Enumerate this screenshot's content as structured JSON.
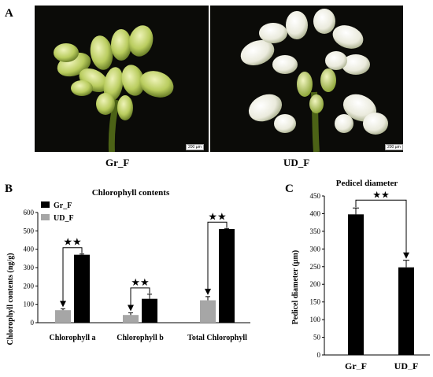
{
  "panelA": {
    "letter": "A",
    "photos": [
      {
        "label": "Gr_F",
        "scale": "200 µm",
        "flower": "green"
      },
      {
        "label": "UD_F",
        "scale": "200 µm",
        "flower": "white"
      }
    ]
  },
  "panelB": {
    "letter": "B"
  },
  "panelC": {
    "letter": "C"
  },
  "colors": {
    "Gr_F": "#000000",
    "UD_F": "#a6a6a6",
    "photo_bg": "#0b0b08"
  },
  "chart_data": [
    {
      "type": "bar",
      "title": "Chlorophyll contents",
      "ylabel": "Chlorophyll contents (ng/g)",
      "xlabel": "",
      "ylim": [
        0,
        600
      ],
      "yticks": [
        0,
        100,
        200,
        300,
        400,
        500,
        600
      ],
      "categories": [
        "Chlorophyll a",
        "Chlorophyll b",
        "Total Chlorophyll"
      ],
      "legend_position": "top-left",
      "series": [
        {
          "name": "UD_F",
          "values": [
            68,
            42,
            122
          ],
          "errors": [
            8,
            12,
            20
          ]
        },
        {
          "name": "Gr_F",
          "values": [
            370,
            130,
            510
          ],
          "errors": [
            4,
            25,
            3
          ]
        }
      ],
      "annotations": [
        "★★",
        "★★",
        "★★"
      ]
    },
    {
      "type": "bar",
      "title": "Pedicel diameter",
      "ylabel": "Pedicel diameter (µm)",
      "xlabel": "",
      "ylim": [
        0,
        450
      ],
      "yticks": [
        0,
        50,
        100,
        150,
        200,
        250,
        300,
        350,
        400,
        450
      ],
      "categories": [
        "Gr_F",
        "UD_F"
      ],
      "values": [
        398,
        248
      ],
      "errors": [
        18,
        20
      ],
      "annotations": [
        "★★"
      ]
    }
  ]
}
